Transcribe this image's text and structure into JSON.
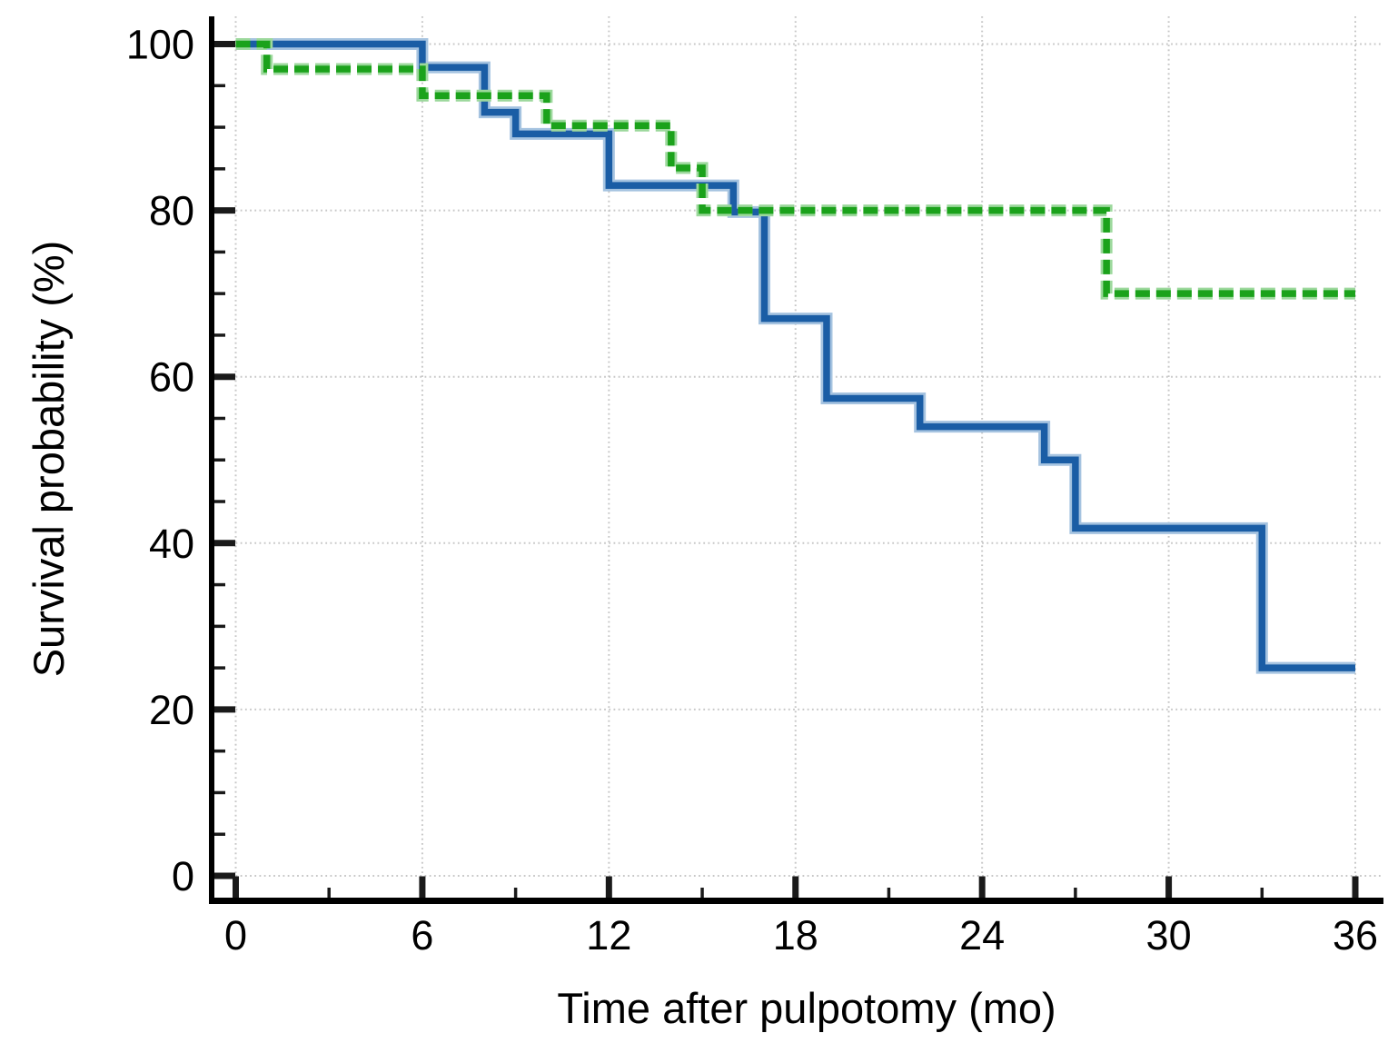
{
  "chart_data": {
    "type": "line",
    "subtype": "kaplan-meier-step",
    "title": "",
    "xlabel": "Time after pulpotomy (mo)",
    "ylabel": "Survival probability (%)",
    "xlim": [
      0,
      36
    ],
    "ylim": [
      0,
      100
    ],
    "x_ticks": [
      0,
      6,
      12,
      18,
      24,
      30,
      36
    ],
    "y_ticks": [
      0,
      20,
      40,
      60,
      80,
      100
    ],
    "x_minor_step": 3,
    "y_minor_step": 5,
    "grid": "dotted major gridlines, both axes",
    "legend": "none",
    "axis_color": "#000000",
    "grid_color": "#c7c7c7",
    "series": [
      {
        "name": "blue-solid-group",
        "style": "solid",
        "color": "#1a5da5",
        "halo_color": "#a5c3e0",
        "steps": [
          [
            0,
            100
          ],
          [
            6,
            97.2
          ],
          [
            8,
            91.8
          ],
          [
            9,
            89.2
          ],
          [
            12,
            83.0
          ],
          [
            16,
            79.8
          ],
          [
            17,
            67.0
          ],
          [
            19,
            57.4
          ],
          [
            22,
            54.0
          ],
          [
            26,
            50.0
          ],
          [
            27,
            41.8
          ],
          [
            33,
            25.0
          ]
        ],
        "end": 36
      },
      {
        "name": "green-dashed-group",
        "style": "dashed",
        "color": "#1ba21b",
        "halo_color": "#9cd89c",
        "steps": [
          [
            0,
            100
          ],
          [
            1,
            97.0
          ],
          [
            6,
            93.8
          ],
          [
            10,
            90.2
          ],
          [
            14,
            85.1
          ],
          [
            15,
            80.0
          ],
          [
            28,
            70.0
          ]
        ],
        "end": 36
      }
    ]
  }
}
